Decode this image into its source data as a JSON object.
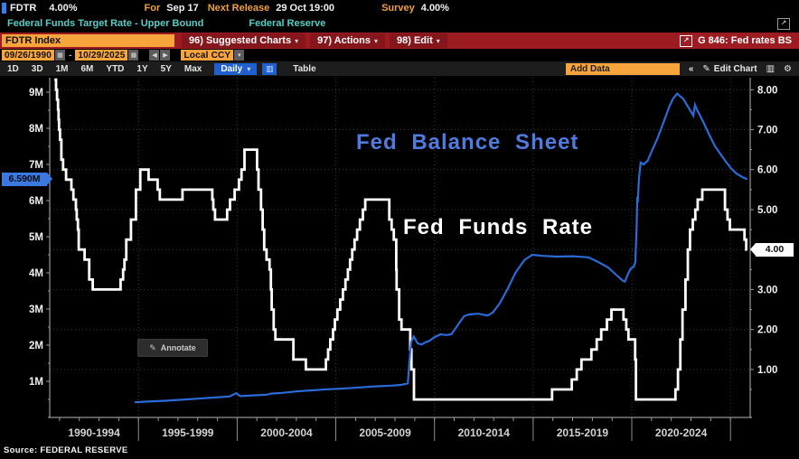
{
  "quote_bar": {
    "ticker": "FDTR",
    "price": "4.00%",
    "for_label": "For",
    "for_value": "Sep 17",
    "next_release_label": "Next Release",
    "next_release_value": "29 Oct 19:00",
    "survey_label": "Survey",
    "survey_value": "4.00%"
  },
  "security_bar": {
    "description": "Federal Funds Target Rate - Upper Bound",
    "source": "Federal Reserve"
  },
  "function_bar": {
    "ticker_field": "FDTR Index",
    "menus": [
      {
        "label": "96) Suggested Charts"
      },
      {
        "label": "97) Actions"
      },
      {
        "label": "98) Edit"
      }
    ],
    "chart_id": "G 846: Fed rates BS"
  },
  "range_bar": {
    "date_from": "09/26/1990",
    "date_to": "10/29/2025",
    "currency": "Local CCY"
  },
  "toolbar": {
    "periods": [
      "1D",
      "3D",
      "1M",
      "6M",
      "YTD",
      "1Y",
      "5Y",
      "Max"
    ],
    "frequency": "Daily",
    "table_label": "Table",
    "add_data_label": "Add Data",
    "collapse_label": "«",
    "edit_chart_label": "Edit Chart"
  },
  "chart": {
    "series1_label": "Fed Balance Sheet",
    "series2_label": "Fed Funds Rate",
    "annotate_label": "Annotate",
    "left_tag": "6.590M",
    "right_tag": "4.00"
  },
  "source_line": "Source: FEDERAL RESERVE",
  "icons": {
    "calendar": "▦",
    "prev": "◀",
    "next": "▶",
    "dropdown": "▾",
    "open_external": "↗",
    "pencil": "✎",
    "gear": "⚙",
    "chart_type": "▥",
    "mini_chart": "∕"
  },
  "colors": {
    "amber": "#f7a43c",
    "red_bar": "#9c1c21",
    "red_button": "#85161b",
    "cyan": "#56cfc6",
    "blue_line": "#2b6bd9",
    "blue_label": "#4f7be0",
    "blue_tag": "#3b78e0",
    "white_line": "#ffffff",
    "background": "#000000"
  },
  "chart_data": {
    "type": "line",
    "title": "Fed Balance Sheet vs Fed Funds Rate, 1990-2025",
    "grid": true,
    "x_axis": {
      "xlim": [
        1990.5,
        2026.0
      ],
      "boundaries": [
        1990.5,
        1995,
        2000,
        2005,
        2010,
        2015,
        2020,
        2025
      ],
      "gridline_years": [
        1995,
        2000,
        2005,
        2010,
        2015,
        2020,
        2025
      ],
      "segment_labels": [
        "1990-1994",
        "1995-1999",
        "2000-2004",
        "2005-2009",
        "2010-2014",
        "2015-2019",
        "2020-2024"
      ]
    },
    "left_axis": {
      "title": "Fed Balance Sheet (M = millions USD, i.e. $ trillions)",
      "min": 0,
      "max": 9.4,
      "ticks": [
        {
          "v": 9,
          "label": "9M"
        },
        {
          "v": 8,
          "label": "8M"
        },
        {
          "v": 7,
          "label": "7M"
        },
        {
          "v": 6,
          "label": "6M"
        },
        {
          "v": 5,
          "label": "5M"
        },
        {
          "v": 4,
          "label": "4M"
        },
        {
          "v": 3,
          "label": "3M"
        },
        {
          "v": 2,
          "label": "2M"
        },
        {
          "v": 1,
          "label": "1M"
        }
      ],
      "last_value": 6.59,
      "last_label": "6.590M"
    },
    "right_axis": {
      "title": "Fed Funds Target Rate - Upper Bound (%)",
      "min": -0.2,
      "max": 8.3,
      "ticks": [
        {
          "v": 8,
          "label": "8.00"
        },
        {
          "v": 7,
          "label": "7.00"
        },
        {
          "v": 6,
          "label": "6.00"
        },
        {
          "v": 5,
          "label": "5.00"
        },
        {
          "v": 4,
          "label": "4.00"
        },
        {
          "v": 3,
          "label": "3.00"
        },
        {
          "v": 2,
          "label": "2.00"
        },
        {
          "v": 1,
          "label": "1.00"
        }
      ],
      "last_value": 4.0,
      "last_label": "4.00"
    },
    "series": [
      {
        "name": "Fed Funds Rate",
        "axis": "right",
        "style": "step",
        "color": "#ffffff",
        "points": [
          [
            1990.74,
            8.25
          ],
          [
            1990.82,
            8.0
          ],
          [
            1990.87,
            7.75
          ],
          [
            1990.92,
            7.5
          ],
          [
            1990.95,
            7.25
          ],
          [
            1990.97,
            7.0
          ],
          [
            1991.02,
            6.75
          ],
          [
            1991.09,
            6.25
          ],
          [
            1991.18,
            6.0
          ],
          [
            1991.33,
            5.75
          ],
          [
            1991.6,
            5.5
          ],
          [
            1991.7,
            5.25
          ],
          [
            1991.83,
            5.0
          ],
          [
            1991.87,
            4.75
          ],
          [
            1991.93,
            4.5
          ],
          [
            1991.97,
            4.0
          ],
          [
            1992.27,
            3.75
          ],
          [
            1992.5,
            3.25
          ],
          [
            1992.68,
            3.0
          ],
          [
            1994.09,
            3.25
          ],
          [
            1994.22,
            3.5
          ],
          [
            1994.29,
            3.75
          ],
          [
            1994.38,
            4.25
          ],
          [
            1994.62,
            4.75
          ],
          [
            1994.87,
            5.5
          ],
          [
            1995.09,
            6.0
          ],
          [
            1995.51,
            5.75
          ],
          [
            1995.97,
            5.5
          ],
          [
            1996.08,
            5.25
          ],
          [
            1997.23,
            5.5
          ],
          [
            1998.74,
            5.25
          ],
          [
            1998.79,
            5.0
          ],
          [
            1998.88,
            4.75
          ],
          [
            1999.49,
            5.0
          ],
          [
            1999.64,
            5.25
          ],
          [
            1999.87,
            5.5
          ],
          [
            2000.09,
            5.75
          ],
          [
            2000.22,
            6.0
          ],
          [
            2000.37,
            6.5
          ],
          [
            2001.01,
            6.0
          ],
          [
            2001.08,
            5.5
          ],
          [
            2001.21,
            5.0
          ],
          [
            2001.29,
            4.5
          ],
          [
            2001.37,
            4.0
          ],
          [
            2001.49,
            3.75
          ],
          [
            2001.64,
            3.5
          ],
          [
            2001.71,
            3.0
          ],
          [
            2001.75,
            2.5
          ],
          [
            2001.85,
            2.0
          ],
          [
            2001.94,
            1.75
          ],
          [
            2002.85,
            1.25
          ],
          [
            2003.48,
            1.0
          ],
          [
            2004.5,
            1.25
          ],
          [
            2004.61,
            1.5
          ],
          [
            2004.72,
            1.75
          ],
          [
            2004.86,
            2.0
          ],
          [
            2004.95,
            2.25
          ],
          [
            2005.08,
            2.5
          ],
          [
            2005.22,
            2.75
          ],
          [
            2005.36,
            3.0
          ],
          [
            2005.49,
            3.25
          ],
          [
            2005.61,
            3.5
          ],
          [
            2005.72,
            3.75
          ],
          [
            2005.83,
            4.0
          ],
          [
            2005.95,
            4.25
          ],
          [
            2006.08,
            4.5
          ],
          [
            2006.22,
            4.75
          ],
          [
            2006.37,
            5.0
          ],
          [
            2006.49,
            5.25
          ],
          [
            2007.71,
            4.75
          ],
          [
            2007.83,
            4.5
          ],
          [
            2007.94,
            4.25
          ],
          [
            2008.06,
            3.5
          ],
          [
            2008.08,
            3.0
          ],
          [
            2008.21,
            2.25
          ],
          [
            2008.33,
            2.0
          ],
          [
            2008.77,
            1.5
          ],
          [
            2008.83,
            1.0
          ],
          [
            2008.96,
            0.25
          ],
          [
            2015.96,
            0.5
          ],
          [
            2016.96,
            0.75
          ],
          [
            2017.21,
            1.0
          ],
          [
            2017.45,
            1.25
          ],
          [
            2017.95,
            1.5
          ],
          [
            2018.22,
            1.75
          ],
          [
            2018.45,
            2.0
          ],
          [
            2018.74,
            2.25
          ],
          [
            2018.97,
            2.5
          ],
          [
            2019.58,
            2.25
          ],
          [
            2019.72,
            2.0
          ],
          [
            2019.83,
            1.75
          ],
          [
            2020.17,
            1.25
          ],
          [
            2020.21,
            0.25
          ],
          [
            2022.21,
            0.5
          ],
          [
            2022.34,
            1.0
          ],
          [
            2022.46,
            1.75
          ],
          [
            2022.57,
            2.5
          ],
          [
            2022.72,
            3.25
          ],
          [
            2022.84,
            4.0
          ],
          [
            2022.95,
            4.5
          ],
          [
            2023.09,
            4.75
          ],
          [
            2023.22,
            5.0
          ],
          [
            2023.34,
            5.25
          ],
          [
            2023.57,
            5.5
          ],
          [
            2024.72,
            5.0
          ],
          [
            2024.85,
            4.75
          ],
          [
            2024.97,
            4.5
          ],
          [
            2025.71,
            4.25
          ],
          [
            2025.8,
            4.0
          ],
          [
            2025.85,
            4.0
          ]
        ]
      },
      {
        "name": "Fed Balance Sheet",
        "axis": "left",
        "style": "line",
        "color": "#2b6bd9",
        "points": [
          [
            1994.8,
            0.42
          ],
          [
            1995.5,
            0.44
          ],
          [
            1996.3,
            0.46
          ],
          [
            1997.2,
            0.49
          ],
          [
            1998.0,
            0.52
          ],
          [
            1998.8,
            0.55
          ],
          [
            1999.6,
            0.58
          ],
          [
            1999.95,
            0.67
          ],
          [
            2000.15,
            0.59
          ],
          [
            2000.8,
            0.61
          ],
          [
            2001.5,
            0.63
          ],
          [
            2001.72,
            0.66
          ],
          [
            2002.3,
            0.68
          ],
          [
            2003.0,
            0.72
          ],
          [
            2003.8,
            0.75
          ],
          [
            2004.6,
            0.78
          ],
          [
            2005.4,
            0.8
          ],
          [
            2006.2,
            0.83
          ],
          [
            2007.0,
            0.86
          ],
          [
            2007.8,
            0.88
          ],
          [
            2008.3,
            0.9
          ],
          [
            2008.65,
            0.94
          ],
          [
            2008.73,
            1.55
          ],
          [
            2008.82,
            2.1
          ],
          [
            2008.95,
            2.24
          ],
          [
            2009.15,
            2.05
          ],
          [
            2009.35,
            2.02
          ],
          [
            2009.55,
            2.08
          ],
          [
            2009.75,
            2.12
          ],
          [
            2010.0,
            2.22
          ],
          [
            2010.3,
            2.3
          ],
          [
            2010.6,
            2.28
          ],
          [
            2010.85,
            2.3
          ],
          [
            2011.05,
            2.45
          ],
          [
            2011.3,
            2.65
          ],
          [
            2011.5,
            2.8
          ],
          [
            2011.75,
            2.85
          ],
          [
            2012.2,
            2.87
          ],
          [
            2012.7,
            2.82
          ],
          [
            2012.95,
            2.9
          ],
          [
            2013.3,
            3.15
          ],
          [
            2013.7,
            3.55
          ],
          [
            2014.1,
            4.0
          ],
          [
            2014.55,
            4.35
          ],
          [
            2014.95,
            4.5
          ],
          [
            2015.5,
            4.47
          ],
          [
            2016.2,
            4.45
          ],
          [
            2017.0,
            4.46
          ],
          [
            2017.8,
            4.43
          ],
          [
            2018.3,
            4.3
          ],
          [
            2018.8,
            4.15
          ],
          [
            2019.2,
            3.95
          ],
          [
            2019.55,
            3.78
          ],
          [
            2019.65,
            3.76
          ],
          [
            2019.8,
            3.96
          ],
          [
            2019.95,
            4.12
          ],
          [
            2020.1,
            4.17
          ],
          [
            2020.18,
            4.3
          ],
          [
            2020.24,
            5.2
          ],
          [
            2020.28,
            6.1
          ],
          [
            2020.3,
            5.95
          ],
          [
            2020.36,
            6.6
          ],
          [
            2020.45,
            7.05
          ],
          [
            2020.6,
            7.0
          ],
          [
            2020.8,
            7.1
          ],
          [
            2021.0,
            7.35
          ],
          [
            2021.3,
            7.72
          ],
          [
            2021.6,
            8.15
          ],
          [
            2021.9,
            8.6
          ],
          [
            2022.1,
            8.83
          ],
          [
            2022.3,
            8.96
          ],
          [
            2022.42,
            8.9
          ],
          [
            2022.6,
            8.82
          ],
          [
            2022.9,
            8.55
          ],
          [
            2023.12,
            8.35
          ],
          [
            2023.2,
            8.65
          ],
          [
            2023.3,
            8.52
          ],
          [
            2023.6,
            8.2
          ],
          [
            2023.9,
            7.85
          ],
          [
            2024.2,
            7.52
          ],
          [
            2024.5,
            7.28
          ],
          [
            2024.8,
            7.05
          ],
          [
            2025.05,
            6.88
          ],
          [
            2025.3,
            6.75
          ],
          [
            2025.6,
            6.65
          ],
          [
            2025.85,
            6.59
          ]
        ]
      }
    ]
  }
}
